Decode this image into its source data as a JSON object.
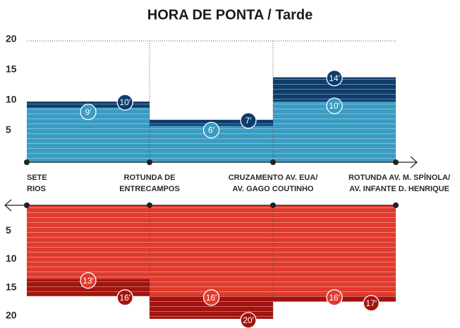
{
  "title": "HORA DE PONTA / Tarde",
  "stops": [
    [
      "SETE",
      "RIOS"
    ],
    [
      "ROTUNDA DE",
      "ENTRECAMPOS"
    ],
    [
      "CRUZAMENTO AV. EUA/",
      "AV. GAGO COUTINHO"
    ],
    [
      "ROTUNDA AV. M. SPÍNOLA/",
      "AV. INFANTE D. HENRIQUE"
    ]
  ],
  "chart_data": [
    {
      "type": "bar",
      "direction": "up",
      "ylim": [
        0,
        20
      ],
      "yticks": [
        5,
        10,
        15,
        20
      ],
      "series": [
        {
          "color": "#0e3d6c",
          "values": [
            10,
            7,
            14
          ],
          "value_labels": [
            "10′",
            "7′",
            "14′"
          ]
        },
        {
          "color": "#3a9bc3",
          "values": [
            9,
            6,
            10
          ],
          "value_labels": [
            "9′",
            "6′",
            "10′"
          ]
        }
      ]
    },
    {
      "type": "bar",
      "direction": "down",
      "ylim": [
        0,
        20
      ],
      "yticks": [
        5,
        10,
        15,
        20
      ],
      "series": [
        {
          "color": "#a3140f",
          "values": [
            16,
            20,
            17
          ],
          "value_labels": [
            "16′",
            "20′",
            "17′"
          ]
        },
        {
          "color": "#e03b2d",
          "values": [
            13,
            16,
            16
          ],
          "value_labels": [
            "13′",
            "16′",
            "16′"
          ]
        }
      ]
    }
  ]
}
